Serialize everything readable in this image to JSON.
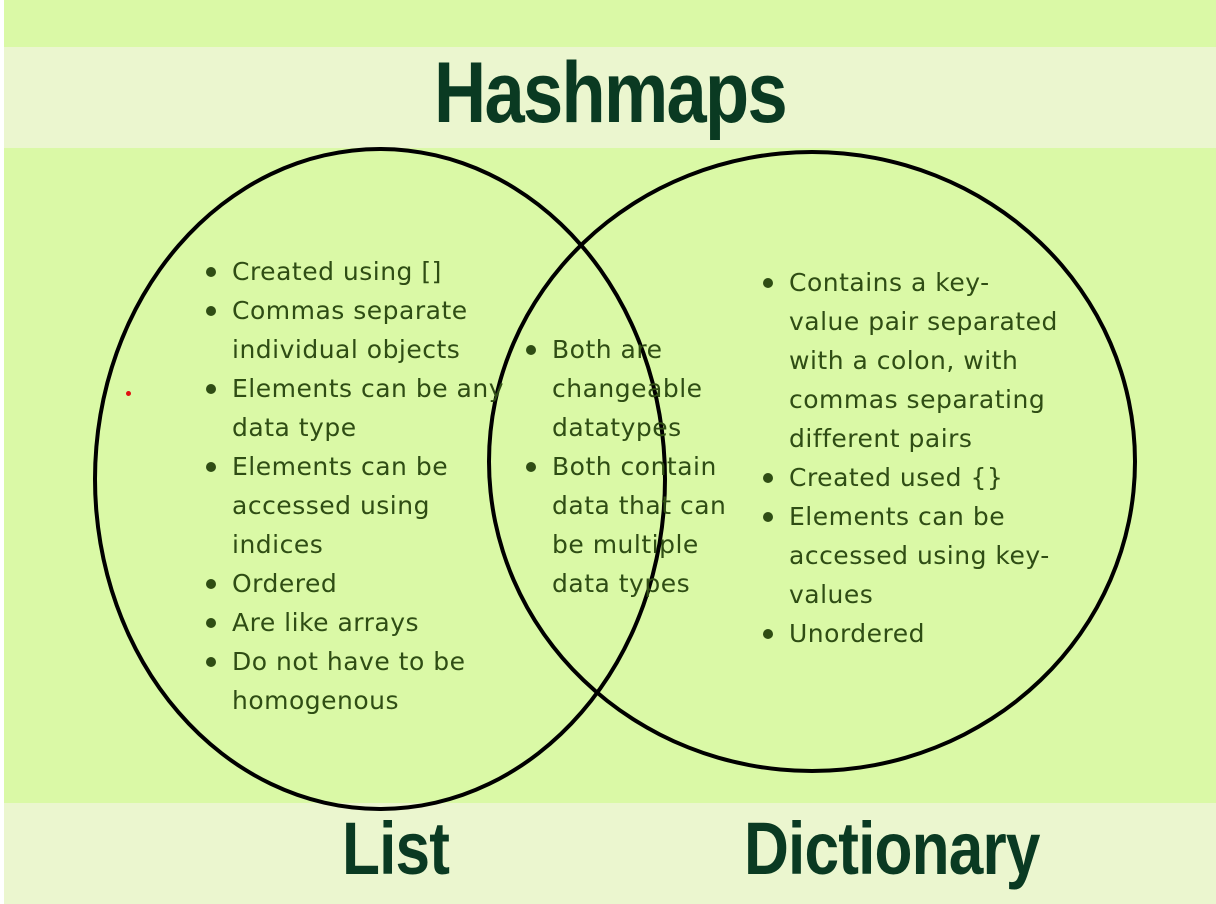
{
  "title": "Hashmaps",
  "left": {
    "label": "List",
    "items": [
      "Created using []",
      "Commas separate individual objects",
      "Elements can be any data type",
      "Elements can be accessed using indices",
      "Ordered",
      "Are like arrays",
      "Do not have to be homogenous"
    ]
  },
  "overlap": {
    "items": [
      "Both are changeable datatypes",
      "Both contain data that can be multiple data types"
    ]
  },
  "right": {
    "label": "Dictionary",
    "items": [
      "Contains a key-value pair separated with a colon, with commas separating different pairs",
      "Created used {}",
      "Elements can be accessed using key-values",
      "Unordered"
    ]
  },
  "colors": {
    "background": "#daf9a6",
    "band": "#ebf6cf",
    "title": "#0a3a22",
    "text": "#2f4d14",
    "circle_stroke": "#000000"
  }
}
